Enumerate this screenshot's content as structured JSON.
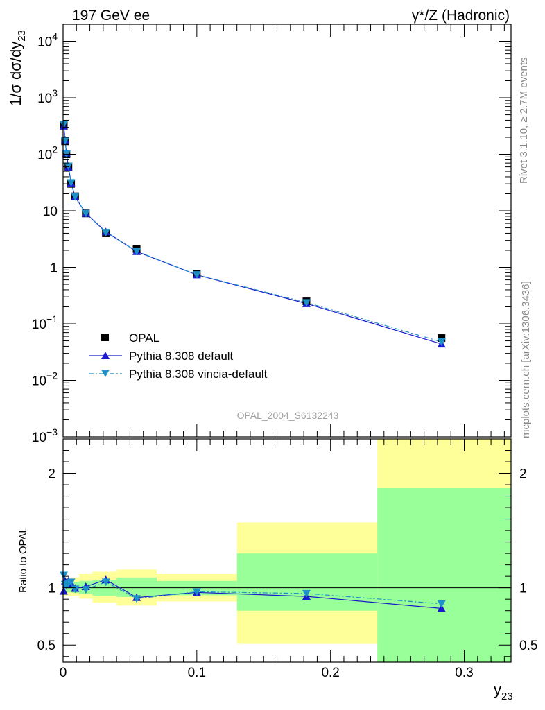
{
  "chart_data": [
    {
      "type": "scatter",
      "panel": "main",
      "title_left": "197 GeV ee",
      "title_right": "γ*/Z (Hadronic)",
      "ylabel": "1/σ dσ/dy",
      "ylabel_sub": "23",
      "yscale": "log",
      "ylim": [
        0.001,
        20000
      ],
      "xlim": [
        0,
        0.335
      ],
      "y_ticks": [
        {
          "value": 10000,
          "base": "10",
          "exp": "4"
        },
        {
          "value": 1000,
          "base": "10",
          "exp": "3"
        },
        {
          "value": 100,
          "base": "10",
          "exp": "2"
        },
        {
          "value": 10,
          "base": "10",
          "exp": ""
        },
        {
          "value": 1,
          "base": "1",
          "exp": ""
        },
        {
          "value": 0.1,
          "base": "10",
          "exp": "−1"
        },
        {
          "value": 0.01,
          "base": "10",
          "exp": "−2"
        },
        {
          "value": 0.001,
          "base": "10",
          "exp": "−3"
        }
      ],
      "legend_position": "bottom-left",
      "analysis_label": "OPAL_2004_S6132243",
      "series": [
        {
          "name": "OPAL",
          "color": "#000000",
          "marker": "square",
          "x": [
            0.0005,
            0.0015,
            0.0025,
            0.004,
            0.006,
            0.009,
            0.017,
            0.032,
            0.055,
            0.1,
            0.182,
            0.283
          ],
          "y": [
            330,
            170,
            100,
            60,
            30,
            18,
            9,
            4,
            2.1,
            0.77,
            0.25,
            0.056
          ]
        },
        {
          "name": "Pythia 8.308 default",
          "color": "#1a1acc",
          "marker": "triangle-up",
          "line": "solid",
          "x": [
            0.0005,
            0.0015,
            0.0025,
            0.004,
            0.006,
            0.009,
            0.017,
            0.032,
            0.055,
            0.1,
            0.182,
            0.283
          ],
          "y": [
            315,
            180,
            105,
            59,
            31,
            17.6,
            9,
            4.25,
            1.9,
            0.735,
            0.228,
            0.044
          ]
        },
        {
          "name": "Pythia 8.308 vincia-default",
          "color": "#1e90c8",
          "marker": "triangle-down",
          "line": "dash-dot",
          "x": [
            0.0005,
            0.0015,
            0.0025,
            0.004,
            0.006,
            0.009,
            0.017,
            0.032,
            0.055,
            0.1,
            0.182,
            0.283
          ],
          "y": [
            340,
            175,
            102,
            62,
            31.5,
            17.8,
            9,
            4.15,
            1.92,
            0.74,
            0.238,
            0.048
          ]
        }
      ]
    },
    {
      "type": "line",
      "panel": "ratio",
      "ylabel": "Ratio to OPAL",
      "xlabel": "y",
      "xlabel_sub": "23",
      "ylim": [
        0.35,
        2.3
      ],
      "y_tick_labels": [
        {
          "value": 0.5,
          "label": "0.5"
        },
        {
          "value": 1,
          "label": "1"
        },
        {
          "value": 2,
          "label": "2"
        }
      ],
      "xlim": [
        0,
        0.335
      ],
      "x_tick_labels": [
        {
          "value": 0,
          "label": "0"
        },
        {
          "value": 0.1,
          "label": "0.1"
        },
        {
          "value": 0.2,
          "label": "0.2"
        },
        {
          "value": 0.3,
          "label": "0.3"
        }
      ],
      "bands": [
        {
          "x0": 0.0,
          "x1": 0.001,
          "inner": [
            0.955,
            1.045
          ],
          "outer": [
            0.92,
            1.1
          ]
        },
        {
          "x0": 0.001,
          "x1": 0.002,
          "inner": [
            0.96,
            1.05
          ],
          "outer": [
            0.93,
            1.09
          ]
        },
        {
          "x0": 0.002,
          "x1": 0.003,
          "inner": [
            0.96,
            1.05
          ],
          "outer": [
            0.93,
            1.09
          ]
        },
        {
          "x0": 0.003,
          "x1": 0.005,
          "inner": [
            0.96,
            1.04
          ],
          "outer": [
            0.93,
            1.08
          ]
        },
        {
          "x0": 0.005,
          "x1": 0.007,
          "inner": [
            0.96,
            1.04
          ],
          "outer": [
            0.93,
            1.08
          ]
        },
        {
          "x0": 0.007,
          "x1": 0.012,
          "inner": [
            0.955,
            1.05
          ],
          "outer": [
            0.93,
            1.09
          ]
        },
        {
          "x0": 0.012,
          "x1": 0.022,
          "inner": [
            0.945,
            1.06
          ],
          "outer": [
            0.905,
            1.12
          ]
        },
        {
          "x0": 0.022,
          "x1": 0.04,
          "inner": [
            0.93,
            1.07
          ],
          "outer": [
            0.87,
            1.14
          ]
        },
        {
          "x0": 0.04,
          "x1": 0.07,
          "inner": [
            0.92,
            1.09
          ],
          "outer": [
            0.845,
            1.16
          ]
        },
        {
          "x0": 0.07,
          "x1": 0.13,
          "inner": [
            0.935,
            1.06
          ],
          "outer": [
            0.88,
            1.12
          ]
        },
        {
          "x0": 0.13,
          "x1": 0.235,
          "inner": [
            0.8,
            1.3
          ],
          "outer": [
            0.51,
            1.57
          ]
        },
        {
          "x0": 0.235,
          "x1": 0.335,
          "inner": [
            0.35,
            1.87
          ],
          "outer": [
            0.35,
            2.3
          ]
        }
      ],
      "series": [
        {
          "name": "Pythia 8.308 default",
          "color": "#1a1acc",
          "marker": "triangle-up",
          "line": "solid",
          "x": [
            0.0005,
            0.0015,
            0.0025,
            0.004,
            0.006,
            0.009,
            0.017,
            0.032,
            0.055,
            0.1,
            0.182,
            0.283
          ],
          "y": [
            0.97,
            1.06,
            1.03,
            1.06,
            1.04,
            0.995,
            1.01,
            1.07,
            0.915,
            0.96,
            0.925,
            0.82
          ]
        },
        {
          "name": "Pythia 8.308 vincia-default",
          "color": "#1e90c8",
          "marker": "triangle-down",
          "line": "dash-dot",
          "x": [
            0.0005,
            0.0015,
            0.0025,
            0.004,
            0.006,
            0.009,
            0.017,
            0.032,
            0.055,
            0.1,
            0.182,
            0.283
          ],
          "y": [
            1.11,
            1.03,
            1.02,
            1.04,
            1.05,
            0.99,
            0.985,
            1.05,
            0.905,
            0.965,
            0.95,
            0.86
          ]
        }
      ]
    }
  ],
  "side_text_top": "Rivet 3.1.10, ≥ 2.7M events",
  "side_text_bottom": "mcplots.cern.ch [arXiv:1306.3436]"
}
